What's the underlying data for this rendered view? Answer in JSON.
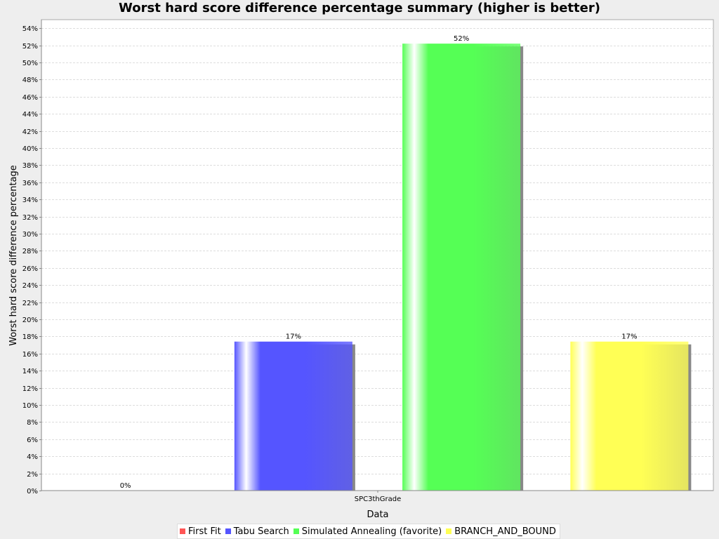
{
  "chart_data": {
    "type": "bar",
    "title": "Worst hard score difference percentage summary (higher is better)",
    "xlabel": "Data",
    "ylabel": "Worst hard score difference percentage",
    "categories": [
      "SPC3thGrade"
    ],
    "series": [
      {
        "name": "First Fit",
        "values": [
          0
        ],
        "label": "0%",
        "color": "#ff5555"
      },
      {
        "name": "Tabu Search",
        "values": [
          17.4
        ],
        "label": "17%",
        "color": "#5555ff"
      },
      {
        "name": "Simulated Annealing (favorite)",
        "values": [
          52.2
        ],
        "label": "52%",
        "color": "#55ff55"
      },
      {
        "name": "BRANCH_AND_BOUND",
        "values": [
          17.4
        ],
        "label": "17%",
        "color": "#ffff55"
      }
    ],
    "ylim": [
      0,
      55
    ],
    "y_ticks": [
      "0%",
      "2%",
      "4%",
      "6%",
      "8%",
      "10%",
      "12%",
      "14%",
      "16%",
      "18%",
      "20%",
      "22%",
      "24%",
      "26%",
      "28%",
      "30%",
      "32%",
      "34%",
      "36%",
      "38%",
      "40%",
      "42%",
      "44%",
      "46%",
      "48%",
      "50%",
      "52%",
      "54%"
    ],
    "grid": true,
    "legend_position": "bottom"
  }
}
